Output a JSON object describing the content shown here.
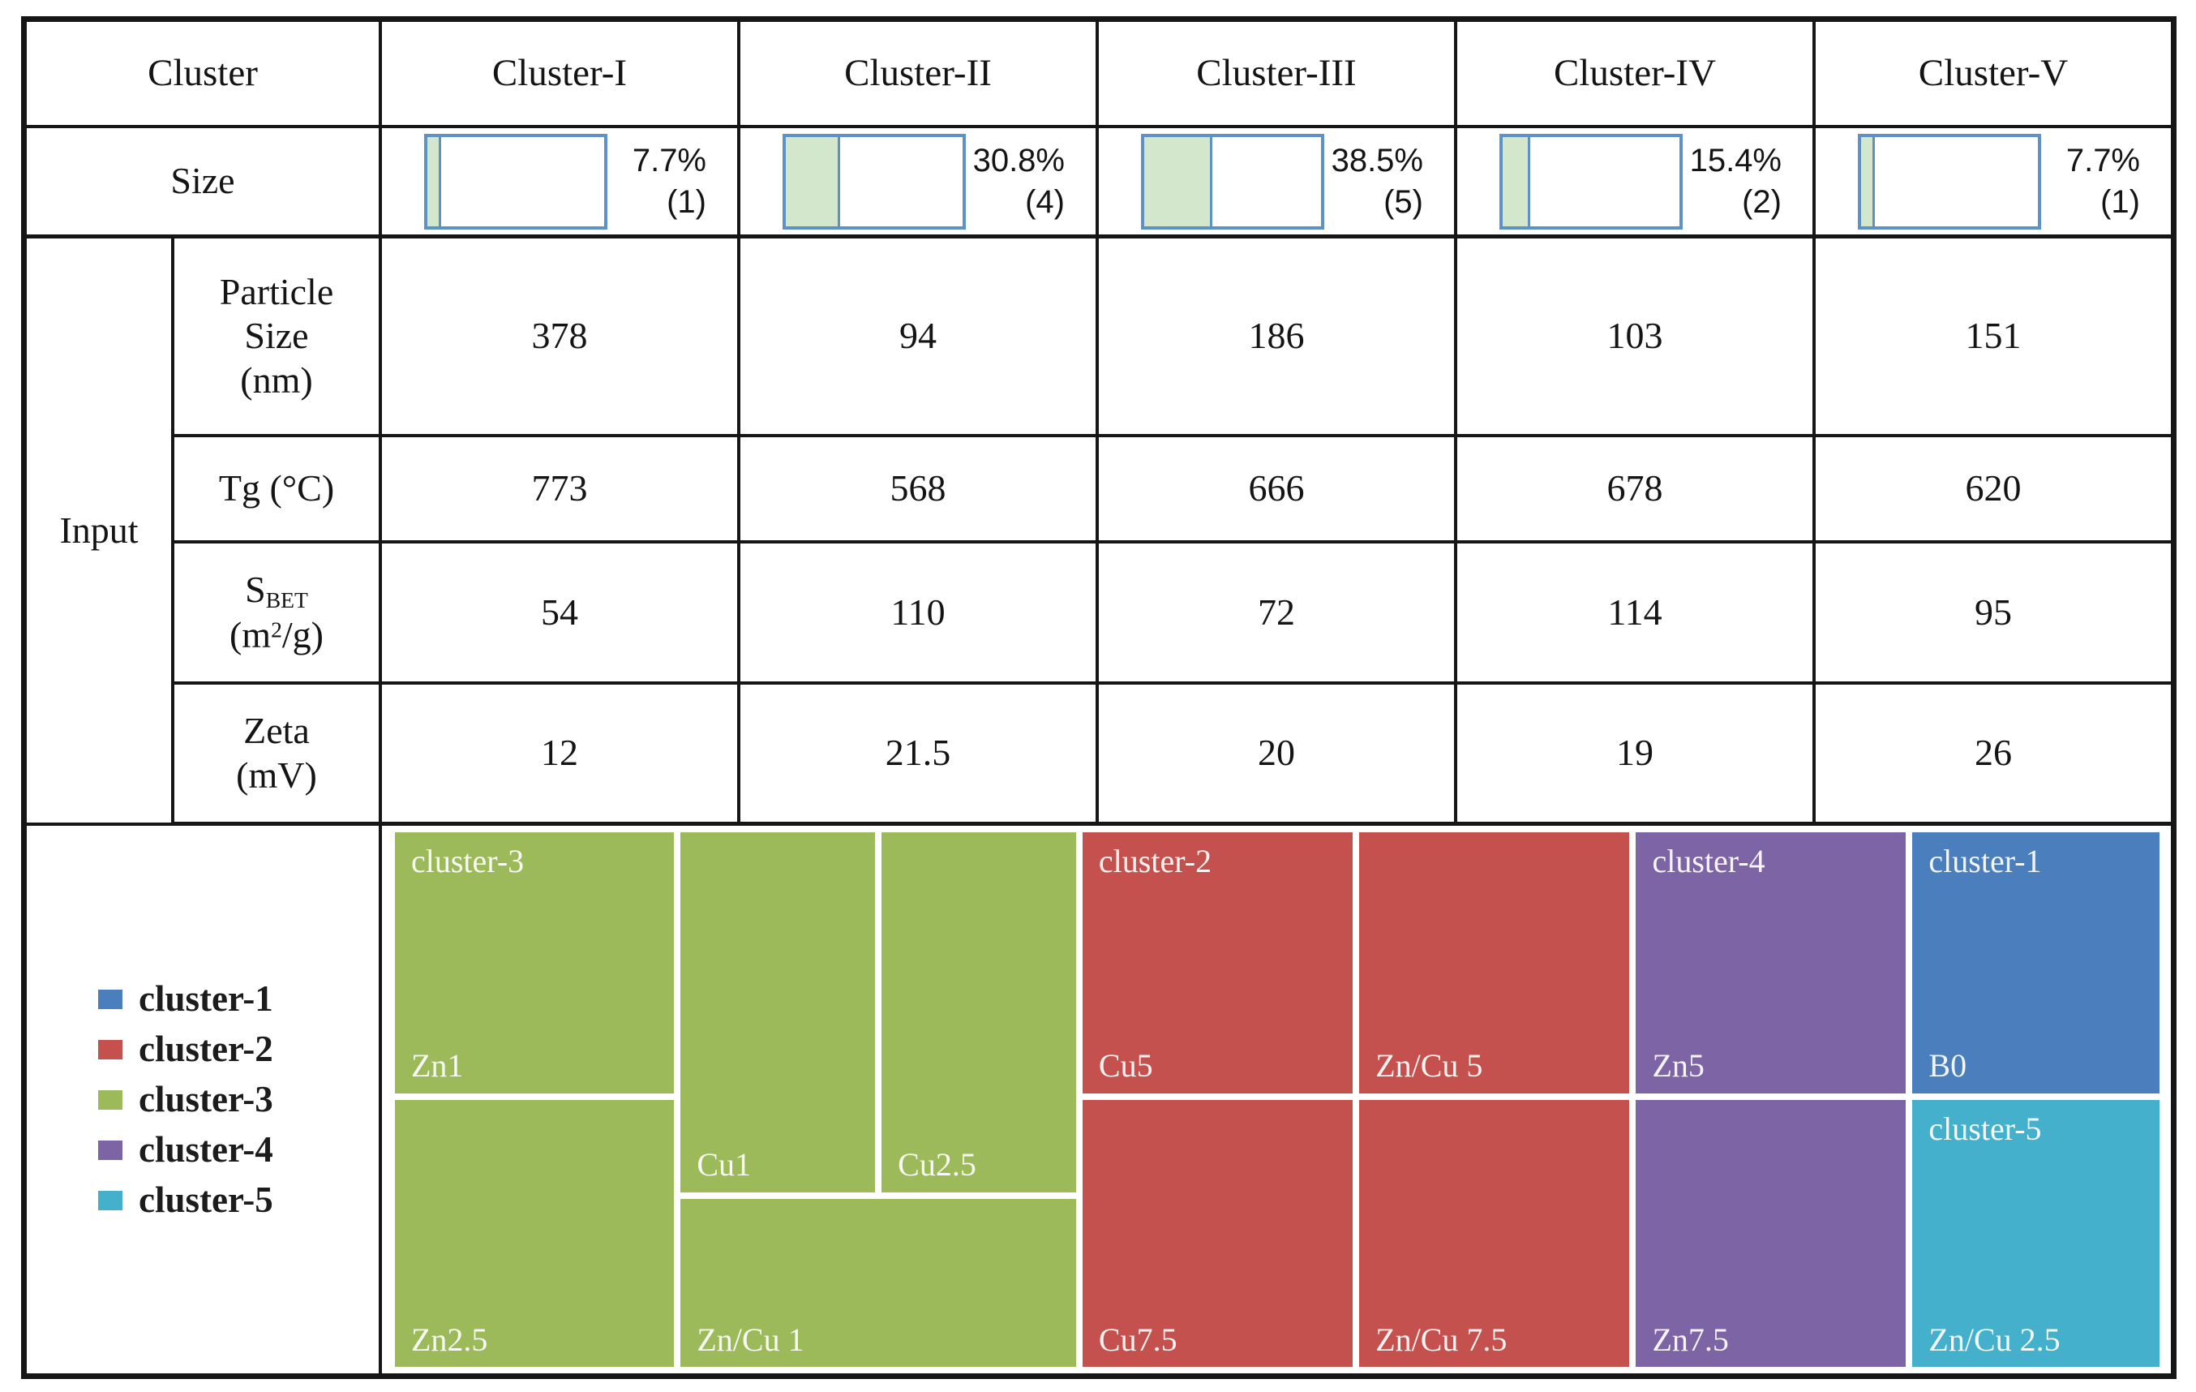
{
  "header": {
    "corner_label": "Cluster",
    "columns": [
      "Cluster-I",
      "Cluster-II",
      "Cluster-III",
      "Cluster-IV",
      "Cluster-V"
    ]
  },
  "size_row": {
    "label": "Size",
    "bars": [
      {
        "percent": "7.7%",
        "count": "(1)",
        "fill_pct": 7.7
      },
      {
        "percent": "30.8%",
        "count": "(4)",
        "fill_pct": 30.8
      },
      {
        "percent": "38.5%",
        "count": "(5)",
        "fill_pct": 38.5
      },
      {
        "percent": "15.4%",
        "count": "(2)",
        "fill_pct": 15.4
      },
      {
        "percent": "7.7%",
        "count": "(1)",
        "fill_pct": 7.7
      }
    ]
  },
  "input_rows": {
    "group_label": "Input",
    "particle": {
      "line1": "Particle",
      "line2": "Size",
      "line3": "(nm)",
      "values": [
        "378",
        "94",
        "186",
        "103",
        "151"
      ]
    },
    "tg": {
      "label": "Tg (°C)",
      "values": [
        "773",
        "568",
        "666",
        "678",
        "620"
      ]
    },
    "sbet": {
      "label_base": "S",
      "label_sub": "BET",
      "unit_pre": "(m",
      "unit_sup": "2",
      "unit_post": "/g)",
      "values": [
        "54",
        "110",
        "72",
        "114",
        "95"
      ]
    },
    "zeta": {
      "line1": "Zeta",
      "line2": "(mV)",
      "values": [
        "12",
        "21.5",
        "20",
        "19",
        "26"
      ]
    }
  },
  "legend": {
    "items": [
      {
        "label": "cluster-1",
        "color": "#4a7ebd"
      },
      {
        "label": "cluster-2",
        "color": "#c4514e"
      },
      {
        "label": "cluster-3",
        "color": "#9cba59"
      },
      {
        "label": "cluster-4",
        "color": "#7d64a5"
      },
      {
        "label": "cluster-5",
        "color": "#44b0cb"
      }
    ]
  },
  "colors": {
    "bar_fill": "#d2e7cb",
    "bar_border": "#5e92c4"
  },
  "treemap": {
    "cluster3": {
      "name": "cluster-3",
      "color": "#9cba59",
      "zn1": "Zn1",
      "zn2_5": "Zn2.5",
      "cu1": "Cu1",
      "cu2_5": "Cu2.5",
      "zncu1": "Zn/Cu 1"
    },
    "cluster2": {
      "name": "cluster-2",
      "color": "#c4514e",
      "cu5": "Cu5",
      "zncu5": "Zn/Cu 5",
      "cu7_5": "Cu7.5",
      "zncu7_5": "Zn/Cu 7.5"
    },
    "cluster4": {
      "name": "cluster-4",
      "color": "#7d64a5",
      "zn5": "Zn5",
      "zn7_5": "Zn7.5"
    },
    "cluster1": {
      "name": "cluster-1",
      "color": "#4a7ebd",
      "b0": "B0"
    },
    "cluster5": {
      "name": "cluster-5",
      "color": "#44b0cb",
      "zncu2_5": "Zn/Cu 2.5"
    }
  },
  "chart_data": [
    {
      "type": "table",
      "columns": [
        "Cluster-I",
        "Cluster-II",
        "Cluster-III",
        "Cluster-IV",
        "Cluster-V"
      ],
      "rows": [
        {
          "label": "Size",
          "values": [
            "7.7% (1)",
            "30.8% (4)",
            "38.5% (5)",
            "15.4% (2)",
            "7.7% (1)"
          ]
        },
        {
          "label": "Particle Size (nm)",
          "values": [
            378,
            94,
            186,
            103,
            151
          ]
        },
        {
          "label": "Tg (°C)",
          "values": [
            773,
            568,
            666,
            678,
            620
          ]
        },
        {
          "label": "S_BET (m2/g)",
          "values": [
            54,
            110,
            72,
            114,
            95
          ]
        },
        {
          "label": "Zeta (mV)",
          "values": [
            12,
            21.5,
            20,
            19,
            26
          ]
        }
      ]
    },
    {
      "type": "bar",
      "categories": [
        "Cluster-I",
        "Cluster-II",
        "Cluster-III",
        "Cluster-IV",
        "Cluster-V"
      ],
      "values": [
        7.7,
        30.8,
        38.5,
        15.4,
        7.7
      ],
      "counts": [
        1,
        4,
        5,
        2,
        1
      ],
      "ylim": [
        0,
        100
      ]
    },
    {
      "type": "treemap",
      "groups": [
        {
          "name": "cluster-3",
          "color": "#9cba59",
          "items": [
            "Zn1",
            "Zn2.5",
            "Cu1",
            "Cu2.5",
            "Zn/Cu 1"
          ]
        },
        {
          "name": "cluster-2",
          "color": "#c4514e",
          "items": [
            "Cu5",
            "Zn/Cu 5",
            "Cu7.5",
            "Zn/Cu 7.5"
          ]
        },
        {
          "name": "cluster-4",
          "color": "#7d64a5",
          "items": [
            "Zn5",
            "Zn7.5"
          ]
        },
        {
          "name": "cluster-1",
          "color": "#4a7ebd",
          "items": [
            "B0"
          ]
        },
        {
          "name": "cluster-5",
          "color": "#44b0cb",
          "items": [
            "Zn/Cu 2.5"
          ]
        }
      ],
      "legend_position": "left"
    }
  ]
}
